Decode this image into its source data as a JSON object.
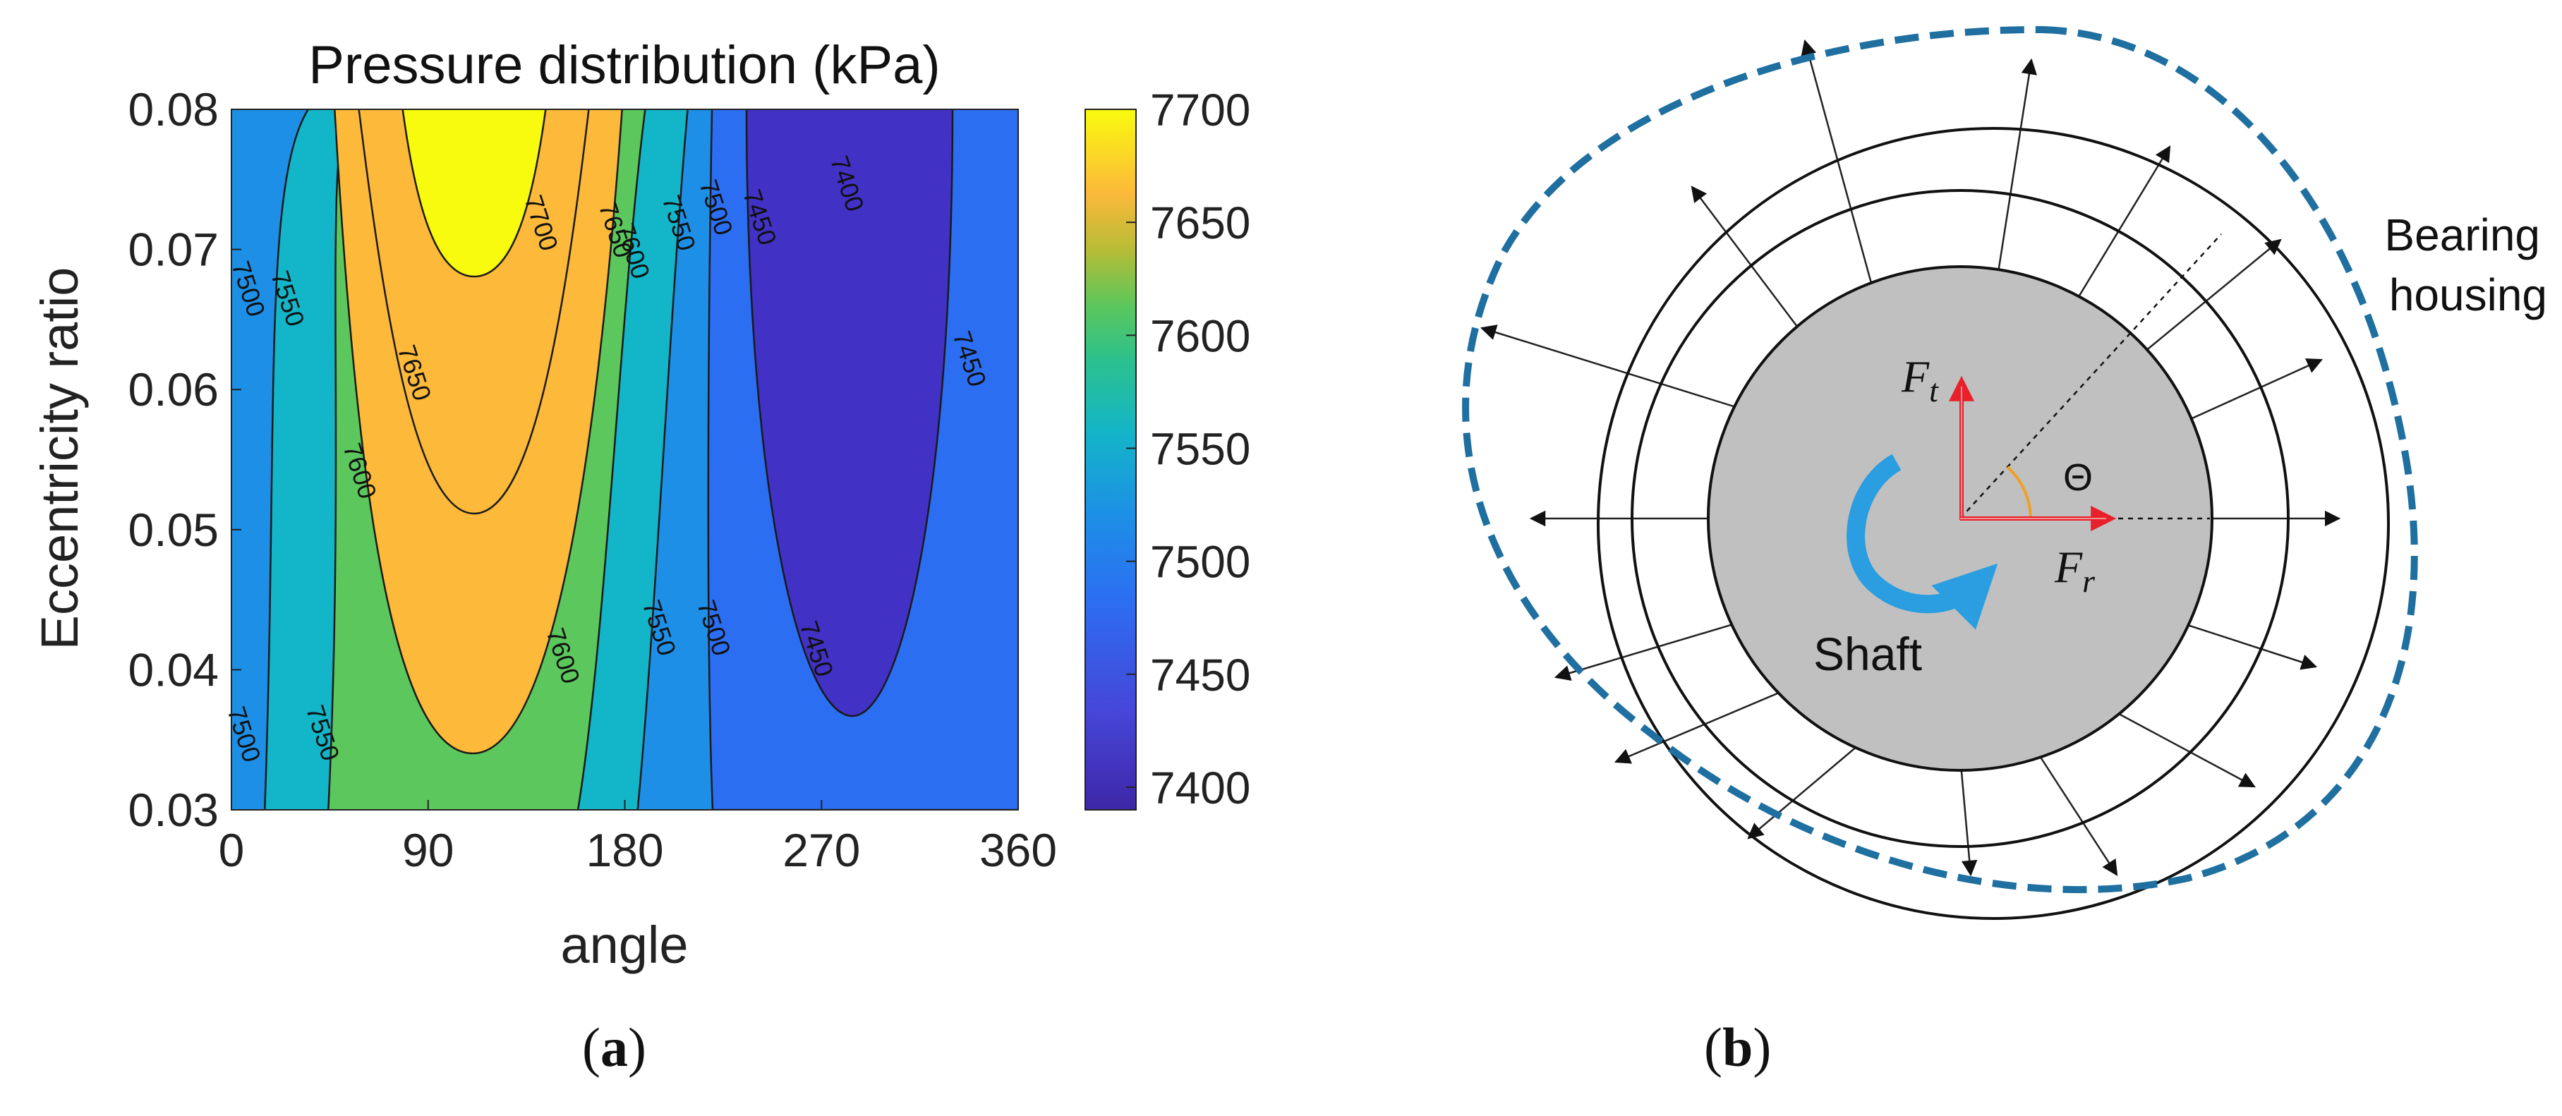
{
  "chart_data": [
    {
      "type": "contour",
      "title": "Pressure distribution (kPa)",
      "xlabel": "angle",
      "ylabel": "Eccentricity ratio",
      "xlim": [
        0,
        360
      ],
      "ylim": [
        0.03,
        0.08
      ],
      "xticks": [
        "0",
        "90",
        "180",
        "270",
        "360"
      ],
      "yticks": [
        "0.03",
        "0.04",
        "0.05",
        "0.06",
        "0.07",
        "0.08"
      ],
      "colorbar": {
        "min": 7390,
        "max": 7700,
        "ticks": [
          "7700",
          "7650",
          "7600",
          "7550",
          "7500",
          "7450",
          "7400"
        ]
      },
      "contour_levels": [
        7400,
        7450,
        7500,
        7550,
        7600,
        7650,
        7700
      ],
      "contour_labels": [
        {
          "text": "7700",
          "x": 138,
          "y": 0.0717
        },
        {
          "text": "7650",
          "x": 172,
          "y": 0.0712
        },
        {
          "text": "7600",
          "x": 180,
          "y": 0.0697
        },
        {
          "text": "7550",
          "x": 201,
          "y": 0.0717
        },
        {
          "text": "7500",
          "x": 218,
          "y": 0.0728
        },
        {
          "text": "7450",
          "x": 238,
          "y": 0.0721
        },
        {
          "text": "7400",
          "x": 278,
          "y": 0.0745
        },
        {
          "text": "7500",
          "x": 4,
          "y": 0.067
        },
        {
          "text": "7550",
          "x": 22,
          "y": 0.0663
        },
        {
          "text": "7650",
          "x": 80,
          "y": 0.061
        },
        {
          "text": "7600",
          "x": 55,
          "y": 0.054
        },
        {
          "text": "7450",
          "x": 334,
          "y": 0.062
        },
        {
          "text": "7600",
          "x": 148,
          "y": 0.0408
        },
        {
          "text": "7550",
          "x": 192,
          "y": 0.0428
        },
        {
          "text": "7500",
          "x": 217,
          "y": 0.0428
        },
        {
          "text": "7450",
          "x": 264,
          "y": 0.0413
        },
        {
          "text": "7550",
          "x": 38,
          "y": 0.0353
        },
        {
          "text": "7500",
          "x": 2,
          "y": 0.0352
        }
      ]
    }
  ],
  "diagram": {
    "label_bearing_line1": "Bearing",
    "label_bearing_line2": "housing",
    "label_shaft": "Shaft",
    "label_theta": "Θ",
    "force_t": {
      "symbol": "F",
      "subscript": "t"
    },
    "force_r": {
      "symbol": "F",
      "subscript": "r"
    }
  },
  "captions": {
    "a_letter": "a",
    "b_letter": "b"
  },
  "colors": {
    "dashed_pressure": "#1f6fa0",
    "shaft_fill": "#c0c0c0",
    "force_arrow": "#e8202a",
    "rotation_arrow": "#2a9ee0",
    "theta_arc": "#f0a020"
  }
}
